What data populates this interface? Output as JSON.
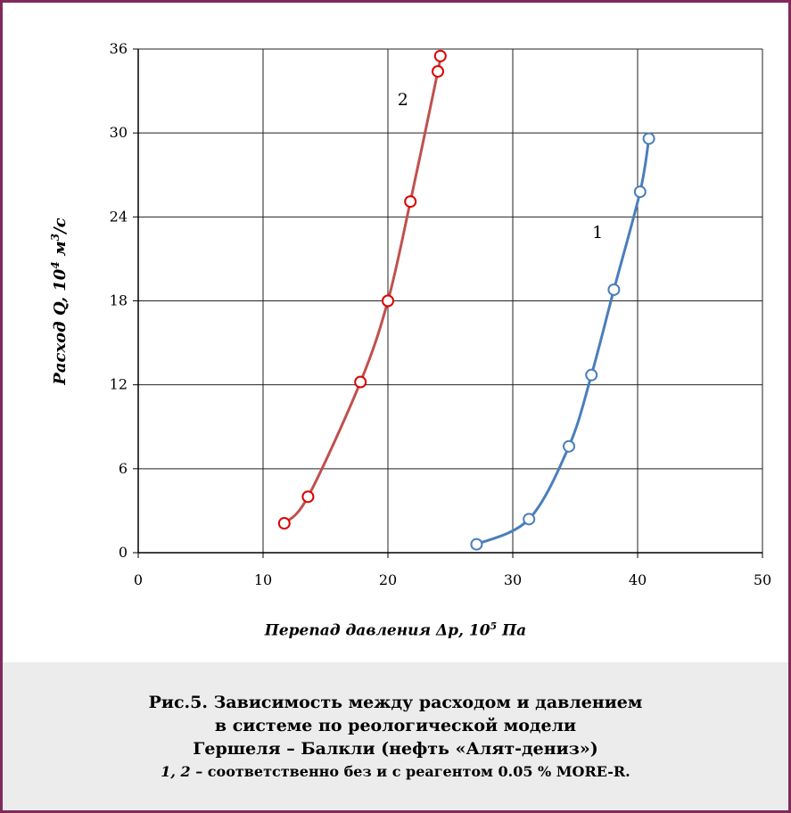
{
  "chart_data": {
    "type": "line",
    "title": "",
    "ylabel_text": "Расход Q, 10",
    "ylabel_sup1": "4",
    "ylabel_unit": "м",
    "ylabel_sup2": "3",
    "ylabel_tail": "/с",
    "xlabel_text": "Перепад давления Δp, 10",
    "xlabel_sup": "5",
    "xlabel_unit": " Па",
    "xlim": [
      0,
      50
    ],
    "ylim": [
      0,
      36
    ],
    "xticks": [
      0,
      10,
      20,
      30,
      40,
      50
    ],
    "yticks": [
      0,
      6,
      12,
      18,
      24,
      30,
      36
    ],
    "grid": true,
    "series": [
      {
        "name": "1",
        "color": "#4a7ebb",
        "points": [
          [
            27.1,
            0.6
          ],
          [
            31.3,
            2.4
          ],
          [
            34.5,
            7.6
          ],
          [
            36.3,
            12.7
          ],
          [
            38.1,
            18.8
          ],
          [
            40.2,
            25.8
          ],
          [
            40.9,
            29.6
          ]
        ]
      },
      {
        "name": "2",
        "color": "#c0504d",
        "marker_color": "#dd0000",
        "points": [
          [
            11.7,
            2.1
          ],
          [
            13.6,
            4.0
          ],
          [
            17.8,
            12.2
          ],
          [
            20.0,
            18.0
          ],
          [
            21.8,
            25.1
          ],
          [
            24.0,
            34.4
          ],
          [
            24.2,
            35.5
          ]
        ]
      }
    ]
  },
  "caption": {
    "line1": "Рис.5. Зависимость между расходом и давлением",
    "line2": "в системе по реологической модели",
    "line3": "Гершеля – Балкли  (нефть «Алят-дениз»)",
    "note_italic": "1, 2",
    "note_rest": " – соответственно без и с реагентом 0.05 % MORE-R."
  }
}
